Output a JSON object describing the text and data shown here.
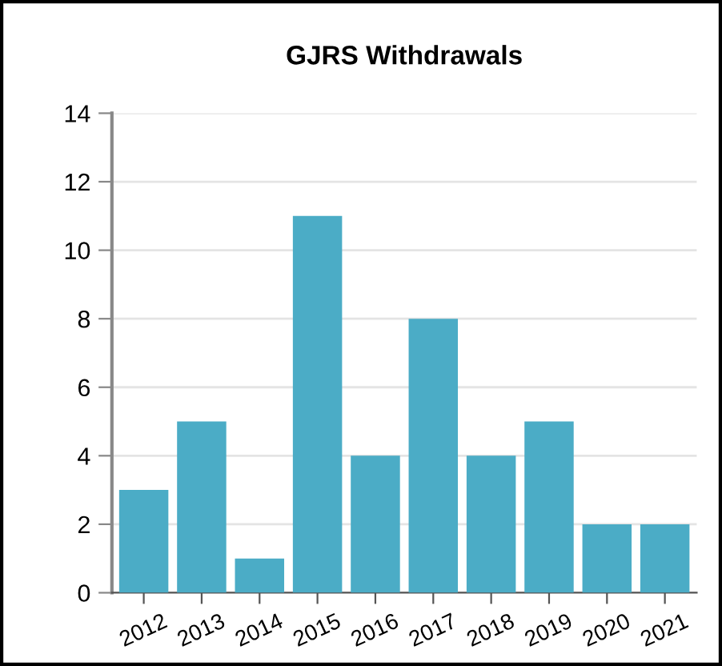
{
  "chart_data": {
    "type": "bar",
    "title": "GJRS Withdrawals",
    "categories": [
      "2012",
      "2013",
      "2014",
      "2015",
      "2016",
      "2017",
      "2018",
      "2019",
      "2020",
      "2021"
    ],
    "values": [
      3,
      5,
      1,
      11,
      4,
      8,
      4,
      5,
      2,
      2
    ],
    "color": "#4bacc6",
    "ylim": [
      0,
      14
    ],
    "yticks": [
      0,
      2,
      4,
      6,
      8,
      10,
      12,
      14
    ],
    "grid": "y",
    "legend": false
  }
}
